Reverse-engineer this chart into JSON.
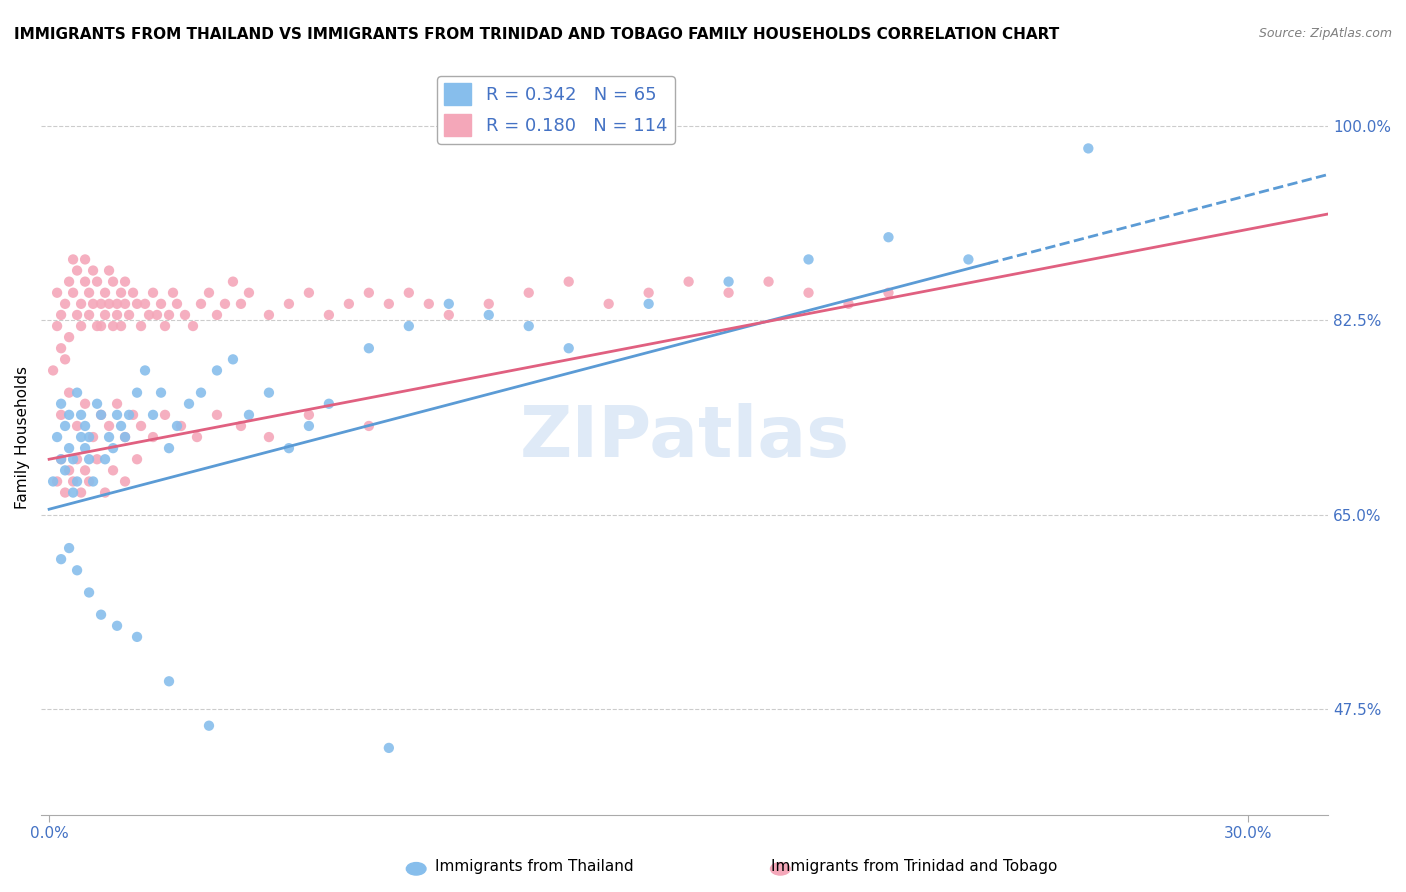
{
  "title": "IMMIGRANTS FROM THAILAND VS IMMIGRANTS FROM TRINIDAD AND TOBAGO FAMILY HOUSEHOLDS CORRELATION CHART",
  "source": "Source: ZipAtlas.com",
  "ylabel": "Family Households",
  "ymin": 0.38,
  "ymax": 1.06,
  "xmin": -0.002,
  "xmax": 0.32,
  "R_thailand": 0.342,
  "N_thailand": 65,
  "R_tobago": 0.18,
  "N_tobago": 114,
  "color_thailand": "#87BEEC",
  "color_tobago": "#F4A7B9",
  "color_line_thailand": "#5B9BD5",
  "color_line_tobago": "#E06080",
  "color_text": "#4472C4",
  "watermark": "ZIPatlas",
  "legend_label_thailand": "Immigrants from Thailand",
  "legend_label_tobago": "Immigrants from Trinidad and Tobago",
  "thailand_x": [
    0.001,
    0.002,
    0.003,
    0.003,
    0.004,
    0.004,
    0.005,
    0.005,
    0.006,
    0.006,
    0.007,
    0.007,
    0.008,
    0.008,
    0.009,
    0.009,
    0.01,
    0.01,
    0.011,
    0.012,
    0.013,
    0.014,
    0.015,
    0.016,
    0.017,
    0.018,
    0.019,
    0.02,
    0.022,
    0.024,
    0.026,
    0.028,
    0.03,
    0.032,
    0.035,
    0.038,
    0.042,
    0.046,
    0.05,
    0.055,
    0.06,
    0.065,
    0.07,
    0.08,
    0.09,
    0.1,
    0.11,
    0.12,
    0.13,
    0.15,
    0.17,
    0.19,
    0.21,
    0.23,
    0.26,
    0.003,
    0.005,
    0.007,
    0.01,
    0.013,
    0.017,
    0.022,
    0.03,
    0.04,
    0.085
  ],
  "thailand_y": [
    0.68,
    0.72,
    0.7,
    0.75,
    0.73,
    0.69,
    0.71,
    0.74,
    0.67,
    0.7,
    0.76,
    0.68,
    0.72,
    0.74,
    0.71,
    0.73,
    0.7,
    0.72,
    0.68,
    0.75,
    0.74,
    0.7,
    0.72,
    0.71,
    0.74,
    0.73,
    0.72,
    0.74,
    0.76,
    0.78,
    0.74,
    0.76,
    0.71,
    0.73,
    0.75,
    0.76,
    0.78,
    0.79,
    0.74,
    0.76,
    0.71,
    0.73,
    0.75,
    0.8,
    0.82,
    0.84,
    0.83,
    0.82,
    0.8,
    0.84,
    0.86,
    0.88,
    0.9,
    0.88,
    0.98,
    0.61,
    0.62,
    0.6,
    0.58,
    0.56,
    0.55,
    0.54,
    0.5,
    0.46,
    0.44
  ],
  "tobago_x": [
    0.001,
    0.002,
    0.002,
    0.003,
    0.003,
    0.004,
    0.004,
    0.005,
    0.005,
    0.006,
    0.006,
    0.007,
    0.007,
    0.008,
    0.008,
    0.009,
    0.009,
    0.01,
    0.01,
    0.011,
    0.011,
    0.012,
    0.012,
    0.013,
    0.013,
    0.014,
    0.014,
    0.015,
    0.015,
    0.016,
    0.016,
    0.017,
    0.017,
    0.018,
    0.018,
    0.019,
    0.019,
    0.02,
    0.021,
    0.022,
    0.023,
    0.024,
    0.025,
    0.026,
    0.027,
    0.028,
    0.029,
    0.03,
    0.031,
    0.032,
    0.034,
    0.036,
    0.038,
    0.04,
    0.042,
    0.044,
    0.046,
    0.048,
    0.05,
    0.055,
    0.06,
    0.065,
    0.07,
    0.075,
    0.08,
    0.085,
    0.09,
    0.095,
    0.1,
    0.11,
    0.12,
    0.13,
    0.14,
    0.15,
    0.16,
    0.17,
    0.18,
    0.19,
    0.2,
    0.21,
    0.003,
    0.005,
    0.007,
    0.009,
    0.011,
    0.013,
    0.015,
    0.017,
    0.019,
    0.021,
    0.023,
    0.026,
    0.029,
    0.033,
    0.037,
    0.042,
    0.048,
    0.055,
    0.065,
    0.08,
    0.002,
    0.003,
    0.004,
    0.005,
    0.006,
    0.007,
    0.008,
    0.009,
    0.01,
    0.012,
    0.014,
    0.016,
    0.019,
    0.022
  ],
  "tobago_y": [
    0.78,
    0.82,
    0.85,
    0.8,
    0.83,
    0.79,
    0.84,
    0.86,
    0.81,
    0.88,
    0.85,
    0.83,
    0.87,
    0.84,
    0.82,
    0.86,
    0.88,
    0.85,
    0.83,
    0.87,
    0.84,
    0.82,
    0.86,
    0.84,
    0.82,
    0.85,
    0.83,
    0.87,
    0.84,
    0.82,
    0.86,
    0.84,
    0.83,
    0.85,
    0.82,
    0.84,
    0.86,
    0.83,
    0.85,
    0.84,
    0.82,
    0.84,
    0.83,
    0.85,
    0.83,
    0.84,
    0.82,
    0.83,
    0.85,
    0.84,
    0.83,
    0.82,
    0.84,
    0.85,
    0.83,
    0.84,
    0.86,
    0.84,
    0.85,
    0.83,
    0.84,
    0.85,
    0.83,
    0.84,
    0.85,
    0.84,
    0.85,
    0.84,
    0.83,
    0.84,
    0.85,
    0.86,
    0.84,
    0.85,
    0.86,
    0.85,
    0.86,
    0.85,
    0.84,
    0.85,
    0.74,
    0.76,
    0.73,
    0.75,
    0.72,
    0.74,
    0.73,
    0.75,
    0.72,
    0.74,
    0.73,
    0.72,
    0.74,
    0.73,
    0.72,
    0.74,
    0.73,
    0.72,
    0.74,
    0.73,
    0.68,
    0.7,
    0.67,
    0.69,
    0.68,
    0.7,
    0.67,
    0.69,
    0.68,
    0.7,
    0.67,
    0.69,
    0.68,
    0.7
  ]
}
